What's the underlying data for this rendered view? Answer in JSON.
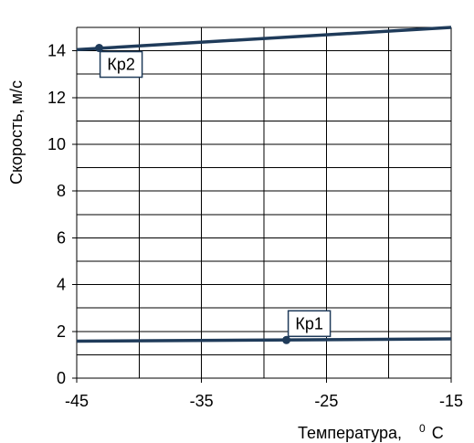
{
  "chart_data": {
    "type": "line",
    "x_label_main": "Температура,",
    "x_label_sup": "0",
    "x_label_unit": "C",
    "y_label": "Скорость, м/с",
    "xlim": [
      -45,
      -15
    ],
    "ylim": [
      0,
      15
    ],
    "x_ticks": [
      -45,
      -35,
      -25,
      -15
    ],
    "x_gridlines": [
      -45,
      -40,
      -35,
      -30,
      -25,
      -20,
      -15
    ],
    "y_ticks": [
      0,
      2,
      4,
      6,
      8,
      10,
      12,
      14
    ],
    "y_gridlines": [
      0,
      1,
      2,
      3,
      4,
      5,
      6,
      7,
      8,
      9,
      10,
      11,
      12,
      13,
      14,
      15
    ],
    "grid": true,
    "series": [
      {
        "x": [
          -45,
          -15
        ],
        "y": [
          1.58,
          1.68
        ],
        "color": "#1f3b5a",
        "point": {
          "label": "Кр1",
          "x": -28.2,
          "y": 1.63
        }
      },
      {
        "x": [
          -45,
          -15
        ],
        "y": [
          14.05,
          15.0
        ],
        "color": "#1f3b5a",
        "point": {
          "label": "Кр2",
          "x": -43.2,
          "y": 14.12
        }
      }
    ]
  }
}
